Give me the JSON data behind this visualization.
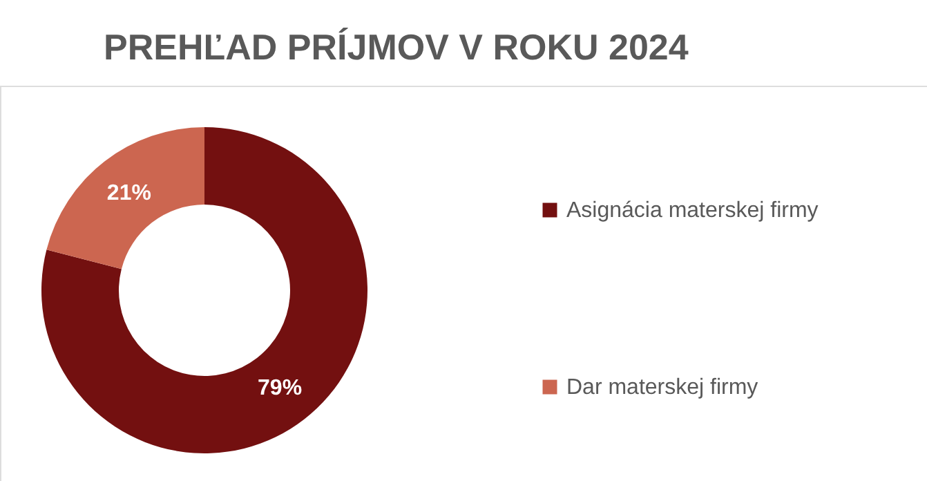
{
  "chart_data": {
    "type": "donut",
    "title": "PREHĽAD PRÍJMOV V ROKU 2024",
    "categories": [
      "Asignácia materskej firmy",
      "Dar materskej firmy"
    ],
    "values": [
      79,
      21
    ],
    "colors": [
      "#731010",
      "#cc6650"
    ],
    "value_labels": [
      "79%",
      "21%"
    ],
    "legend": "right"
  }
}
